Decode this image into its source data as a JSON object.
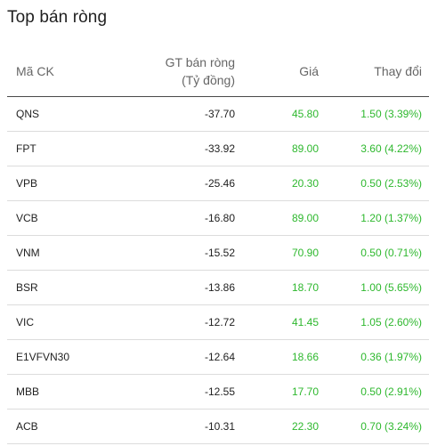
{
  "title": "Top bán ròng",
  "columns": {
    "ticker": "Mã CK",
    "net_value_line1": "GT bán ròng",
    "net_value_line2": "(Tỷ đồng)",
    "price": "Giá",
    "change": "Thay đổi"
  },
  "colors": {
    "positive": "#2eb82e",
    "text": "#1f1f1f",
    "header_text": "#666666"
  },
  "rows": [
    {
      "ticker": "QNS",
      "net_value": "-37.70",
      "price": "45.80",
      "change": "1.50 (3.39%)"
    },
    {
      "ticker": "FPT",
      "net_value": "-33.92",
      "price": "89.00",
      "change": "3.60 (4.22%)"
    },
    {
      "ticker": "VPB",
      "net_value": "-25.46",
      "price": "20.30",
      "change": "0.50 (2.53%)"
    },
    {
      "ticker": "VCB",
      "net_value": "-16.80",
      "price": "89.00",
      "change": "1.20 (1.37%)"
    },
    {
      "ticker": "VNM",
      "net_value": "-15.52",
      "price": "70.90",
      "change": "0.50 (0.71%)"
    },
    {
      "ticker": "BSR",
      "net_value": "-13.86",
      "price": "18.70",
      "change": "1.00 (5.65%)"
    },
    {
      "ticker": "VIC",
      "net_value": "-12.72",
      "price": "41.45",
      "change": "1.05 (2.60%)"
    },
    {
      "ticker": "E1VFVN30",
      "net_value": "-12.64",
      "price": "18.66",
      "change": "0.36 (1.97%)"
    },
    {
      "ticker": "MBB",
      "net_value": "-12.55",
      "price": "17.70",
      "change": "0.50 (2.91%)"
    },
    {
      "ticker": "ACB",
      "net_value": "-10.31",
      "price": "22.30",
      "change": "0.70 (3.24%)"
    }
  ]
}
